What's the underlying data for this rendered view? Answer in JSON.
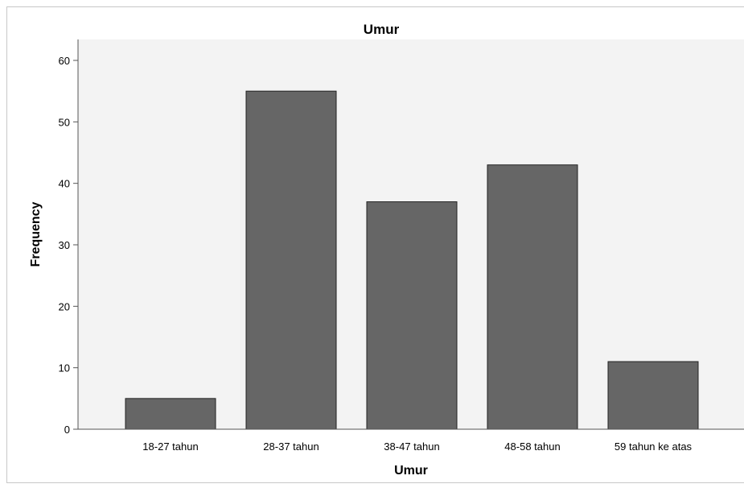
{
  "chart_data": {
    "type": "bar",
    "title": "Umur",
    "xlabel": "Umur",
    "ylabel": "Frequency",
    "categories": [
      "18-27 tahun",
      "28-37 tahun",
      "38-47 tahun",
      "48-58 tahun",
      "59 tahun ke atas"
    ],
    "values": [
      5,
      55,
      37,
      43,
      11
    ],
    "ylim": [
      0,
      60
    ],
    "yticks": [
      "0",
      "10",
      "20",
      "30",
      "40",
      "50",
      "60"
    ],
    "grid": false,
    "legend": "none",
    "colors": {
      "bar_fill": "#666666",
      "bar_stroke": "#222222",
      "plot_background": "#f3f3f3",
      "axis": "#555555"
    }
  }
}
